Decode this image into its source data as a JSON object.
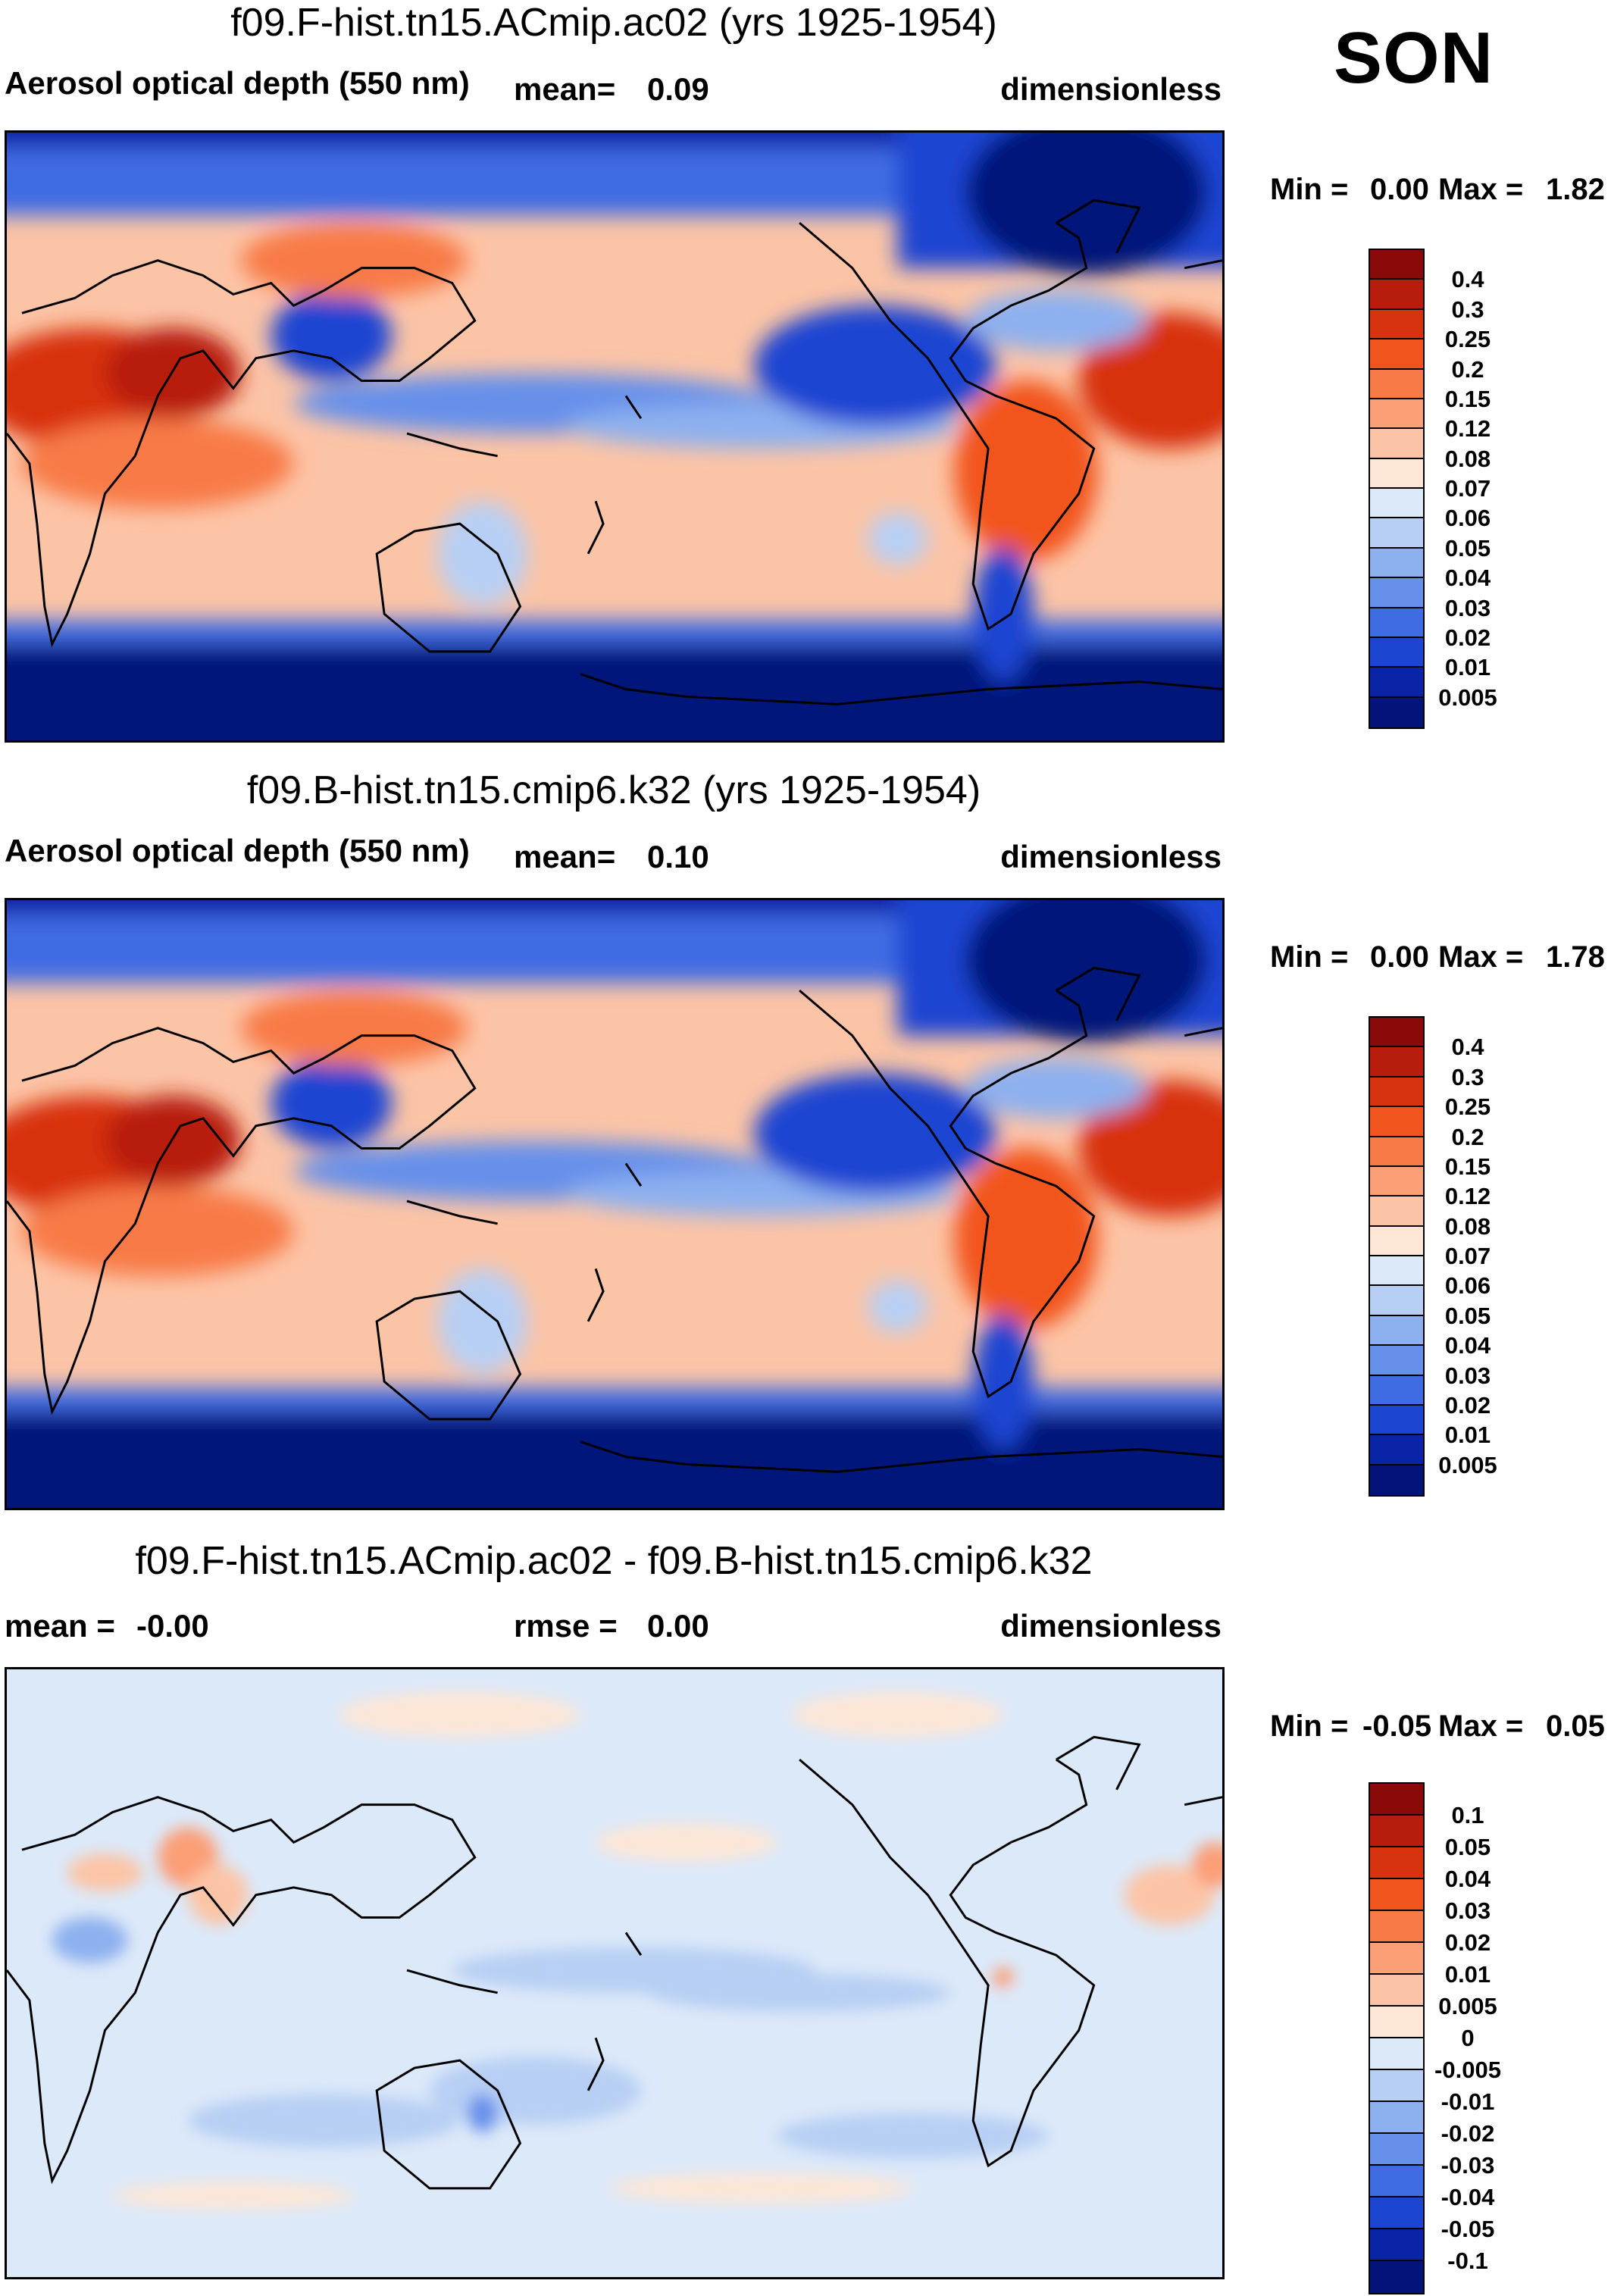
{
  "season": "SON",
  "units": "dimensionless",
  "chart_data": [
    {
      "type": "heatmap",
      "title": "f09.F-hist.tn15.ACmip.ac02 (yrs 1925-1954)",
      "subtitle": "Aerosol optical depth (550 nm)",
      "mean_label": "mean=",
      "mean_value": "0.09",
      "units": "dimensionless",
      "min_label": "Min =",
      "min_value": "0.00",
      "max_label": "Max =",
      "max_value": "1.82",
      "colorbar_levels": [
        "0.4",
        "0.3",
        "0.25",
        "0.2",
        "0.15",
        "0.12",
        "0.08",
        "0.07",
        "0.06",
        "0.05",
        "0.04",
        "0.03",
        "0.02",
        "0.01",
        "0.005"
      ],
      "colorbar_colors": [
        "#8a0a0a",
        "#b71c0d",
        "#d8330f",
        "#f2541d",
        "#f87a46",
        "#fb9f77",
        "#fcc4a6",
        "#fde6d6",
        "#dce9f9",
        "#b7cff4",
        "#8db0ef",
        "#6690ea",
        "#3f6ce3",
        "#1c45d2",
        "#0a24a8",
        "#03137a"
      ]
    },
    {
      "type": "heatmap",
      "title": "f09.B-hist.tn15.cmip6.k32 (yrs 1925-1954)",
      "subtitle": "Aerosol optical depth (550 nm)",
      "mean_label": "mean=",
      "mean_value": "0.10",
      "units": "dimensionless",
      "min_label": "Min =",
      "min_value": "0.00",
      "max_label": "Max =",
      "max_value": "1.78",
      "colorbar_levels": [
        "0.4",
        "0.3",
        "0.25",
        "0.2",
        "0.15",
        "0.12",
        "0.08",
        "0.07",
        "0.06",
        "0.05",
        "0.04",
        "0.03",
        "0.02",
        "0.01",
        "0.005"
      ],
      "colorbar_colors": [
        "#8a0a0a",
        "#b71c0d",
        "#d8330f",
        "#f2541d",
        "#f87a46",
        "#fb9f77",
        "#fcc4a6",
        "#fde6d6",
        "#dce9f9",
        "#b7cff4",
        "#8db0ef",
        "#6690ea",
        "#3f6ce3",
        "#1c45d2",
        "#0a24a8",
        "#03137a"
      ]
    },
    {
      "type": "heatmap",
      "title": "f09.F-hist.tn15.ACmip.ac02 - f09.B-hist.tn15.cmip6.k32",
      "subtitle": "",
      "mean_label": "mean =",
      "mean_value": "-0.00",
      "rmse_label": "rmse =",
      "rmse_value": "0.00",
      "units": "dimensionless",
      "min_label": "Min =",
      "min_value": "-0.05",
      "max_label": "Max =",
      "max_value": "0.05",
      "colorbar_levels": [
        "0.1",
        "0.05",
        "0.04",
        "0.03",
        "0.02",
        "0.01",
        "0.005",
        "0",
        "-0.005",
        "-0.01",
        "-0.02",
        "-0.03",
        "-0.04",
        "-0.05",
        "-0.1"
      ],
      "colorbar_colors": [
        "#8a0a0a",
        "#b71c0d",
        "#d8330f",
        "#f2541d",
        "#f87a46",
        "#fb9f77",
        "#fcc4a6",
        "#fde6d6",
        "#dce9f9",
        "#b7cff4",
        "#8db0ef",
        "#6690ea",
        "#3f6ce3",
        "#1c45d2",
        "#0a24a8",
        "#03137a"
      ]
    }
  ]
}
